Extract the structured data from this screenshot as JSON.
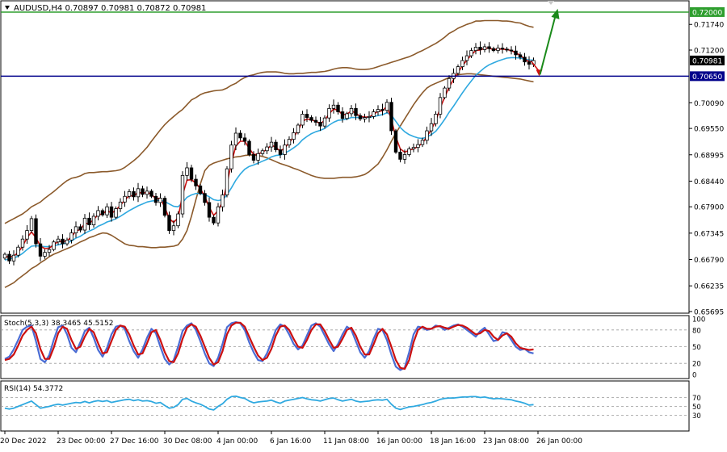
{
  "colors": {
    "background": "#ffffff",
    "frame": "#000000",
    "bullish": "#000000",
    "bearish": "#000000",
    "bollinger": "#8B5A2B",
    "ma_fast": "#CC1010",
    "ma_slow": "#2FA9E0",
    "resistance": "#2E9E2E",
    "support": "#00008B",
    "arrow_up": "#1A8A1A",
    "arrow_down": "#D01010",
    "stoch_main": "#4A6CD4",
    "stoch_signal": "#CC1010",
    "rsi": "#2FA9E0",
    "level_line": "#9a9a9a"
  },
  "header": {
    "symbol_line": "AUDUSD,H4  0.70897 0.70981 0.70872 0.70981"
  },
  "chart_data": [
    {
      "type": "candlestick",
      "symbol": "AUDUSD",
      "timeframe": "H4",
      "ohlc_last": {
        "open": 0.70897,
        "high": 0.70981,
        "low": 0.70872,
        "close": 0.70981
      },
      "ylim": [
        0.6566,
        0.7222
      ],
      "price_ticks": [
        "0.71740",
        "0.71200",
        "0.70090",
        "0.69550",
        "0.68995",
        "0.68440",
        "0.67900",
        "0.67345",
        "0.66790",
        "0.66235",
        "0.65695"
      ],
      "price_tick_values": [
        0.7174,
        0.712,
        0.7009,
        0.6955,
        0.68995,
        0.6844,
        0.679,
        0.67345,
        0.6679,
        0.66235,
        0.65695
      ],
      "x_ticks": [
        "20 Dec 2022",
        "23 Dec 00:00",
        "27 Dec 16:00",
        "30 Dec 08:00",
        "4 Jan 00:00",
        "6 Jan 16:00",
        "11 Jan 08:00",
        "16 Jan 00:00",
        "18 Jan 16:00",
        "23 Jan 08:00",
        "26 Jan 00:00"
      ],
      "x_tick_bars": [
        0,
        12,
        24,
        36,
        48,
        60,
        72,
        84,
        96,
        108,
        120
      ],
      "levels": [
        {
          "name": "resistance",
          "value": 0.72,
          "label": "0.72000"
        },
        {
          "name": "support",
          "value": 0.7065,
          "label": "0.70650"
        },
        {
          "name": "current",
          "value": 0.70981,
          "label": "0.70981"
        }
      ],
      "forecast": {
        "down_to": 0.7065,
        "then_up_to": 0.7195
      },
      "closes": [
        0.669,
        0.6676,
        0.6688,
        0.6705,
        0.6722,
        0.674,
        0.6765,
        0.6712,
        0.6686,
        0.6694,
        0.67,
        0.6716,
        0.6722,
        0.6712,
        0.672,
        0.6735,
        0.6748,
        0.6741,
        0.6766,
        0.6752,
        0.677,
        0.6782,
        0.6773,
        0.679,
        0.6768,
        0.6786,
        0.68,
        0.6812,
        0.6822,
        0.6811,
        0.6828,
        0.6816,
        0.6823,
        0.6812,
        0.6799,
        0.6808,
        0.6772,
        0.674,
        0.675,
        0.6775,
        0.6856,
        0.6872,
        0.6848,
        0.6834,
        0.6818,
        0.6799,
        0.6768,
        0.6756,
        0.679,
        0.6815,
        0.687,
        0.692,
        0.6945,
        0.6935,
        0.6928,
        0.69,
        0.6888,
        0.6902,
        0.6908,
        0.6916,
        0.6926,
        0.691,
        0.69,
        0.692,
        0.6932,
        0.6946,
        0.6962,
        0.6985,
        0.6978,
        0.6972,
        0.6968,
        0.696,
        0.6977,
        0.6997,
        0.7004,
        0.699,
        0.6976,
        0.6986,
        0.6997,
        0.6982,
        0.6975,
        0.6978,
        0.698,
        0.699,
        0.6995,
        0.6993,
        0.701,
        0.695,
        0.6905,
        0.689,
        0.69,
        0.6912,
        0.6915,
        0.6921,
        0.693,
        0.695,
        0.6965,
        0.6985,
        0.702,
        0.704,
        0.706,
        0.7071,
        0.7085,
        0.7098,
        0.7108,
        0.7119,
        0.7126,
        0.7121,
        0.7127,
        0.7123,
        0.7119,
        0.7124,
        0.7122,
        0.712,
        0.7118,
        0.711,
        0.7105,
        0.7095,
        0.709,
        0.7098
      ],
      "bb_upper": [
        0.6755,
        0.676,
        0.6765,
        0.677,
        0.6775,
        0.6782,
        0.679,
        0.6795,
        0.68,
        0.6808,
        0.6815,
        0.6822,
        0.683,
        0.6838,
        0.6845,
        0.685,
        0.6852,
        0.6855,
        0.686,
        0.6862,
        0.6862,
        0.6863,
        0.6864,
        0.6864,
        0.6865,
        0.6866,
        0.6868,
        0.6873,
        0.688,
        0.6887,
        0.6895,
        0.6905,
        0.6915,
        0.6928,
        0.694,
        0.6952,
        0.6963,
        0.6972,
        0.698,
        0.6988,
        0.6995,
        0.7005,
        0.7015,
        0.702,
        0.7026,
        0.703,
        0.7032,
        0.7034,
        0.7035,
        0.7036,
        0.704,
        0.7046,
        0.705,
        0.7057,
        0.7062,
        0.7066,
        0.7068,
        0.7071,
        0.7073,
        0.7074,
        0.7074,
        0.7074,
        0.7073,
        0.7071,
        0.707,
        0.707,
        0.7071,
        0.7071,
        0.7072,
        0.7073,
        0.7073,
        0.7074,
        0.7075,
        0.7077,
        0.708,
        0.7082,
        0.7083,
        0.7083,
        0.7082,
        0.708,
        0.7079,
        0.7079,
        0.708,
        0.7082,
        0.7085,
        0.7088,
        0.7091,
        0.7094,
        0.7097,
        0.71,
        0.7103,
        0.7106,
        0.711,
        0.7115,
        0.7119,
        0.7124,
        0.7129,
        0.7134,
        0.714,
        0.7147,
        0.7155,
        0.716,
        0.7166,
        0.717,
        0.7174,
        0.7177,
        0.7181,
        0.7181,
        0.7182,
        0.7182,
        0.7182,
        0.7182,
        0.7181,
        0.7181,
        0.718,
        0.7178,
        0.7177,
        0.7173,
        0.717,
        0.7168
      ],
      "bb_lower": [
        0.662,
        0.6625,
        0.663,
        0.6638,
        0.6645,
        0.6652,
        0.666,
        0.6665,
        0.6672,
        0.6678,
        0.6685,
        0.669,
        0.6694,
        0.6698,
        0.6702,
        0.6706,
        0.6711,
        0.6716,
        0.672,
        0.6725,
        0.6728,
        0.6732,
        0.6735,
        0.6734,
        0.673,
        0.6724,
        0.6718,
        0.6712,
        0.6709,
        0.6708,
        0.6706,
        0.6706,
        0.6705,
        0.6704,
        0.6704,
        0.6705,
        0.6705,
        0.6706,
        0.6707,
        0.671,
        0.6722,
        0.674,
        0.677,
        0.6805,
        0.6838,
        0.6866,
        0.6877,
        0.6882,
        0.6885,
        0.6888,
        0.6891,
        0.6893,
        0.6895,
        0.6896,
        0.6898,
        0.6899,
        0.6899,
        0.6898,
        0.6896,
        0.6893,
        0.6889,
        0.6885,
        0.6881,
        0.6878,
        0.6875,
        0.6871,
        0.6868,
        0.6864,
        0.686,
        0.6856,
        0.6853,
        0.6851,
        0.685,
        0.685,
        0.685,
        0.6851,
        0.6852,
        0.6852,
        0.6852,
        0.6853,
        0.6855,
        0.6858,
        0.6864,
        0.6872,
        0.688,
        0.6894,
        0.691,
        0.6928,
        0.6945,
        0.696,
        0.6975,
        0.699,
        0.7005,
        0.7018,
        0.703,
        0.704,
        0.7046,
        0.705,
        0.7054,
        0.7058,
        0.7062,
        0.7065,
        0.7068,
        0.7069,
        0.707,
        0.707,
        0.7069,
        0.7068,
        0.7067,
        0.7066,
        0.7065,
        0.7064,
        0.7063,
        0.7062,
        0.7061,
        0.706,
        0.7059,
        0.7057,
        0.7055,
        0.7053
      ],
      "ma_fast": [
        0.6686,
        0.6684,
        0.6686,
        0.6694,
        0.6707,
        0.6725,
        0.6737,
        0.6725,
        0.6707,
        0.6702,
        0.6703,
        0.671,
        0.6717,
        0.6717,
        0.6718,
        0.6727,
        0.6739,
        0.6742,
        0.6755,
        0.6755,
        0.6763,
        0.6774,
        0.6774,
        0.6783,
        0.6776,
        0.6783,
        0.6793,
        0.6804,
        0.6814,
        0.6812,
        0.6821,
        0.6818,
        0.6821,
        0.6816,
        0.6807,
        0.6808,
        0.6789,
        0.6765,
        0.6757,
        0.6767,
        0.6815,
        0.6846,
        0.6847,
        0.684,
        0.6828,
        0.6812,
        0.6789,
        0.6772,
        0.6782,
        0.68,
        0.6838,
        0.6883,
        0.6918,
        0.6928,
        0.6928,
        0.6913,
        0.69,
        0.6901,
        0.6905,
        0.6911,
        0.692,
        0.6915,
        0.6907,
        0.6914,
        0.6925,
        0.6937,
        0.6951,
        0.697,
        0.6975,
        0.6973,
        0.697,
        0.6965,
        0.6972,
        0.6986,
        0.6996,
        0.6993,
        0.6984,
        0.6985,
        0.6992,
        0.6987,
        0.698,
        0.6979,
        0.6979,
        0.6985,
        0.6991,
        0.6992,
        0.7002,
        0.6974,
        0.6937,
        0.6912,
        0.6905,
        0.6909,
        0.6912,
        0.6917,
        0.6924,
        0.6938,
        0.6953,
        0.6971,
        0.6998,
        0.7021,
        0.7042,
        0.7058,
        0.7073,
        0.7087,
        0.7099,
        0.711,
        0.7119,
        0.712,
        0.7124,
        0.7124,
        0.7121,
        0.7122,
        0.7122,
        0.7121,
        0.7119,
        0.7114,
        0.7109,
        0.7101,
        0.7095,
        0.7097
      ],
      "ma_slow": [
        0.6678,
        0.668,
        0.6682,
        0.6686,
        0.6692,
        0.67,
        0.6707,
        0.6708,
        0.6707,
        0.6706,
        0.6706,
        0.6708,
        0.671,
        0.6712,
        0.6714,
        0.6718,
        0.6724,
        0.6728,
        0.6734,
        0.6739,
        0.6743,
        0.6749,
        0.6753,
        0.6758,
        0.6761,
        0.6765,
        0.677,
        0.6776,
        0.6782,
        0.6787,
        0.6792,
        0.6796,
        0.68,
        0.6802,
        0.6803,
        0.6804,
        0.6801,
        0.6796,
        0.6791,
        0.679,
        0.6799,
        0.681,
        0.6815,
        0.6818,
        0.6818,
        0.6816,
        0.6811,
        0.6805,
        0.6803,
        0.6805,
        0.6815,
        0.683,
        0.6846,
        0.6859,
        0.6869,
        0.6875,
        0.6878,
        0.6882,
        0.6886,
        0.689,
        0.6895,
        0.6898,
        0.6899,
        0.6903,
        0.6908,
        0.6914,
        0.6921,
        0.6931,
        0.6938,
        0.6944,
        0.6948,
        0.6951,
        0.6955,
        0.6962,
        0.6968,
        0.6972,
        0.6973,
        0.6975,
        0.6978,
        0.6978,
        0.6978,
        0.6978,
        0.6978,
        0.698,
        0.6982,
        0.6984,
        0.6988,
        0.6983,
        0.697,
        0.6957,
        0.6948,
        0.6942,
        0.6938,
        0.6935,
        0.6934,
        0.6937,
        0.6942,
        0.6949,
        0.6961,
        0.6974,
        0.6989,
        0.7002,
        0.7016,
        0.703,
        0.7043,
        0.7055,
        0.7067,
        0.7075,
        0.7083,
        0.7089,
        0.7093,
        0.7097,
        0.71,
        0.7103,
        0.7104,
        0.7104,
        0.7103,
        0.7101,
        0.7099,
        0.7099
      ]
    },
    {
      "type": "line",
      "title": "Stoch(5,3,3) 38.3465 45.5152",
      "ylim": [
        0,
        100
      ],
      "levels": [
        "100",
        "80",
        "50",
        "20",
        "0"
      ],
      "level_values": [
        100,
        80,
        50,
        20,
        0
      ],
      "series": [
        {
          "values": [
            28,
            32,
            45,
            62,
            80,
            86,
            88,
            60,
            28,
            22,
            35,
            62,
            85,
            88,
            72,
            48,
            40,
            58,
            78,
            84,
            66,
            44,
            32,
            48,
            72,
            86,
            88,
            82,
            60,
            42,
            30,
            45,
            66,
            82,
            74,
            50,
            28,
            18,
            26,
            50,
            78,
            88,
            92,
            80,
            60,
            38,
            20,
            15,
            30,
            55,
            85,
            92,
            94,
            92,
            80,
            58,
            40,
            26,
            24,
            38,
            58,
            80,
            90,
            86,
            72,
            55,
            45,
            52,
            70,
            88,
            92,
            86,
            70,
            54,
            42,
            55,
            72,
            86,
            80,
            60,
            40,
            30,
            42,
            64,
            82,
            80,
            62,
            36,
            14,
            8,
            12,
            40,
            72,
            86,
            84,
            80,
            82,
            88,
            86,
            80,
            84,
            88,
            90,
            86,
            80,
            74,
            68,
            78,
            84,
            72,
            60,
            62,
            76,
            74,
            62,
            50,
            44,
            46,
            40,
            38
          ]
        },
        {
          "values": [
            26,
            28,
            36,
            52,
            70,
            80,
            86,
            74,
            46,
            28,
            28,
            48,
            74,
            86,
            82,
            62,
            46,
            50,
            68,
            82,
            76,
            56,
            38,
            40,
            60,
            80,
            88,
            86,
            72,
            52,
            36,
            38,
            56,
            76,
            80,
            62,
            40,
            24,
            22,
            38,
            64,
            84,
            90,
            86,
            70,
            50,
            30,
            18,
            22,
            42,
            72,
            88,
            93,
            93,
            86,
            68,
            50,
            34,
            26,
            30,
            46,
            70,
            86,
            88,
            80,
            64,
            50,
            48,
            62,
            80,
            90,
            90,
            78,
            62,
            48,
            50,
            64,
            80,
            84,
            70,
            50,
            36,
            36,
            54,
            74,
            82,
            72,
            50,
            26,
            12,
            10,
            26,
            58,
            80,
            86,
            82,
            82,
            86,
            87,
            84,
            82,
            86,
            89,
            88,
            84,
            78,
            72,
            74,
            80,
            78,
            68,
            62,
            70,
            74,
            68,
            56,
            48,
            46,
            44,
            45
          ]
        }
      ]
    },
    {
      "type": "line",
      "title": "RSI(14) 54.3772",
      "ylim": [
        0,
        100
      ],
      "levels": [
        "70",
        "50",
        "30"
      ],
      "level_values": [
        70,
        50,
        30
      ],
      "series": [
        {
          "values": [
            46,
            44,
            46,
            50,
            54,
            58,
            62,
            54,
            46,
            48,
            50,
            53,
            55,
            53,
            55,
            57,
            59,
            58,
            61,
            58,
            61,
            63,
            61,
            63,
            59,
            61,
            63,
            65,
            66,
            63,
            65,
            62,
            63,
            61,
            57,
            59,
            52,
            46,
            48,
            54,
            66,
            68,
            62,
            58,
            55,
            50,
            44,
            42,
            50,
            56,
            66,
            72,
            73,
            70,
            68,
            62,
            58,
            60,
            61,
            62,
            64,
            60,
            57,
            62,
            64,
            66,
            68,
            70,
            67,
            65,
            64,
            62,
            65,
            68,
            69,
            65,
            62,
            64,
            66,
            62,
            60,
            61,
            62,
            64,
            65,
            64,
            66,
            55,
            46,
            43,
            46,
            49,
            50,
            52,
            54,
            57,
            59,
            62,
            66,
            68,
            69,
            69,
            70,
            71,
            71,
            72,
            72,
            70,
            71,
            69,
            67,
            68,
            67,
            66,
            65,
            62,
            60,
            57,
            53,
            54
          ]
        }
      ]
    }
  ]
}
